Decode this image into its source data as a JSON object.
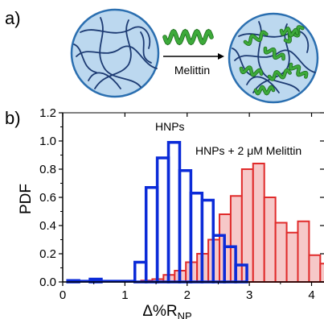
{
  "panel_a": {
    "label": "a)",
    "arrow_label": "Melittin"
  },
  "colors": {
    "particle_fill": "#bcd8ef",
    "particle_stroke": "#2b6fb0",
    "polymer_line": "#1d3b73",
    "melittin_green": "#3daa3a",
    "hnp_series": "#0b2bd8",
    "melittin_series": "#e02b2b",
    "melittin_fill": "#f6c8c8"
  },
  "icons": [
    "nanoparticle-icon",
    "melittin-helix-icon",
    "arrow-right-icon"
  ],
  "chart_data": {
    "type": "bar",
    "panel_label": "b)",
    "xlabel_main": "Δ%R",
    "xlabel_sub": "NP",
    "ylabel": "PDF",
    "xlim": [
      0,
      4.2
    ],
    "ylim": [
      0,
      1.2
    ],
    "xticks": [
      0,
      1,
      2,
      3,
      4
    ],
    "yticks": [
      0.0,
      0.2,
      0.4,
      0.6,
      0.8,
      1.0,
      1.2
    ],
    "ytick_labels": [
      "0.0",
      "0.2",
      "0.4",
      "0.6",
      "0.8",
      "1.0",
      "1.2"
    ],
    "bin_width": 0.18,
    "grid": false,
    "series": [
      {
        "name": "HNPs",
        "bins": [
          {
            "x0": 0.08,
            "y": 0.01
          },
          {
            "x0": 0.44,
            "y": 0.02
          },
          {
            "x0": 1.16,
            "y": 0.14
          },
          {
            "x0": 1.34,
            "y": 0.67
          },
          {
            "x0": 1.52,
            "y": 0.88
          },
          {
            "x0": 1.7,
            "y": 0.99
          },
          {
            "x0": 1.88,
            "y": 0.79
          },
          {
            "x0": 2.06,
            "y": 0.63
          },
          {
            "x0": 2.24,
            "y": 0.58
          },
          {
            "x0": 2.42,
            "y": 0.33
          },
          {
            "x0": 2.6,
            "y": 0.25
          },
          {
            "x0": 2.78,
            "y": 0.12
          }
        ]
      },
      {
        "name": "HNPs + 2 μM Melittin",
        "bins": [
          {
            "x0": 1.26,
            "y": 0.01
          },
          {
            "x0": 1.44,
            "y": 0.02
          },
          {
            "x0": 1.62,
            "y": 0.05
          },
          {
            "x0": 1.8,
            "y": 0.08
          },
          {
            "x0": 1.98,
            "y": 0.14
          },
          {
            "x0": 2.16,
            "y": 0.2
          },
          {
            "x0": 2.34,
            "y": 0.3
          },
          {
            "x0": 2.52,
            "y": 0.48
          },
          {
            "x0": 2.7,
            "y": 0.61
          },
          {
            "x0": 2.88,
            "y": 0.8
          },
          {
            "x0": 3.06,
            "y": 0.84
          },
          {
            "x0": 3.24,
            "y": 0.6
          },
          {
            "x0": 3.42,
            "y": 0.42
          },
          {
            "x0": 3.6,
            "y": 0.35
          },
          {
            "x0": 3.78,
            "y": 0.43
          },
          {
            "x0": 3.96,
            "y": 0.19
          },
          {
            "x0": 4.14,
            "y": 0.13
          }
        ]
      }
    ]
  }
}
